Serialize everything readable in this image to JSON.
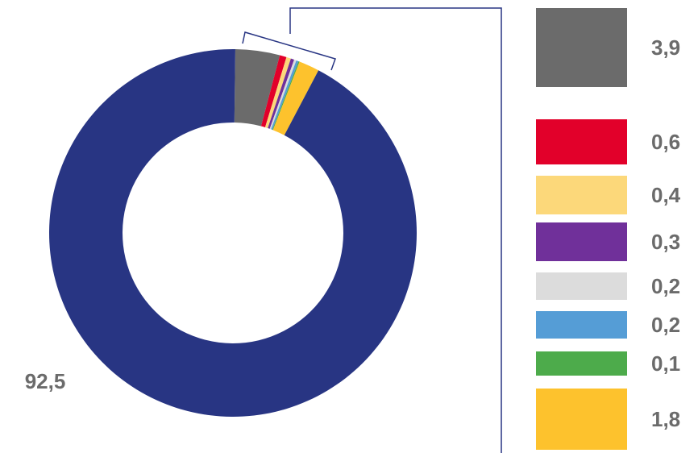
{
  "chart_data": {
    "type": "pie",
    "variant": "donut",
    "title": "",
    "main_value": "92,5",
    "slices": [
      {
        "label": "92,5",
        "value": 92.5,
        "color": "#283583"
      },
      {
        "label": "3,9",
        "value": 3.9,
        "color": "#6b6b6b"
      },
      {
        "label": "0,6",
        "value": 0.6,
        "color": "#e2002a"
      },
      {
        "label": "0,4",
        "value": 0.4,
        "color": "#fcd87a"
      },
      {
        "label": "0,3",
        "value": 0.3,
        "color": "#70309a"
      },
      {
        "label": "0,2",
        "value": 0.2,
        "color": "#dcdcdc"
      },
      {
        "label": "0,2",
        "value": 0.2,
        "color": "#559dd6"
      },
      {
        "label": "0,1",
        "value": 0.1,
        "color": "#4dab4b"
      },
      {
        "label": "1,8",
        "value": 1.8,
        "color": "#fdc22d"
      }
    ],
    "breakdown_legend": [
      "3,9",
      "0,6",
      "0,4",
      "0,3",
      "0,2",
      "0,2",
      "0,1",
      "1,8"
    ],
    "label_color": "#6b6b6b",
    "bracket_color": "#283583"
  }
}
